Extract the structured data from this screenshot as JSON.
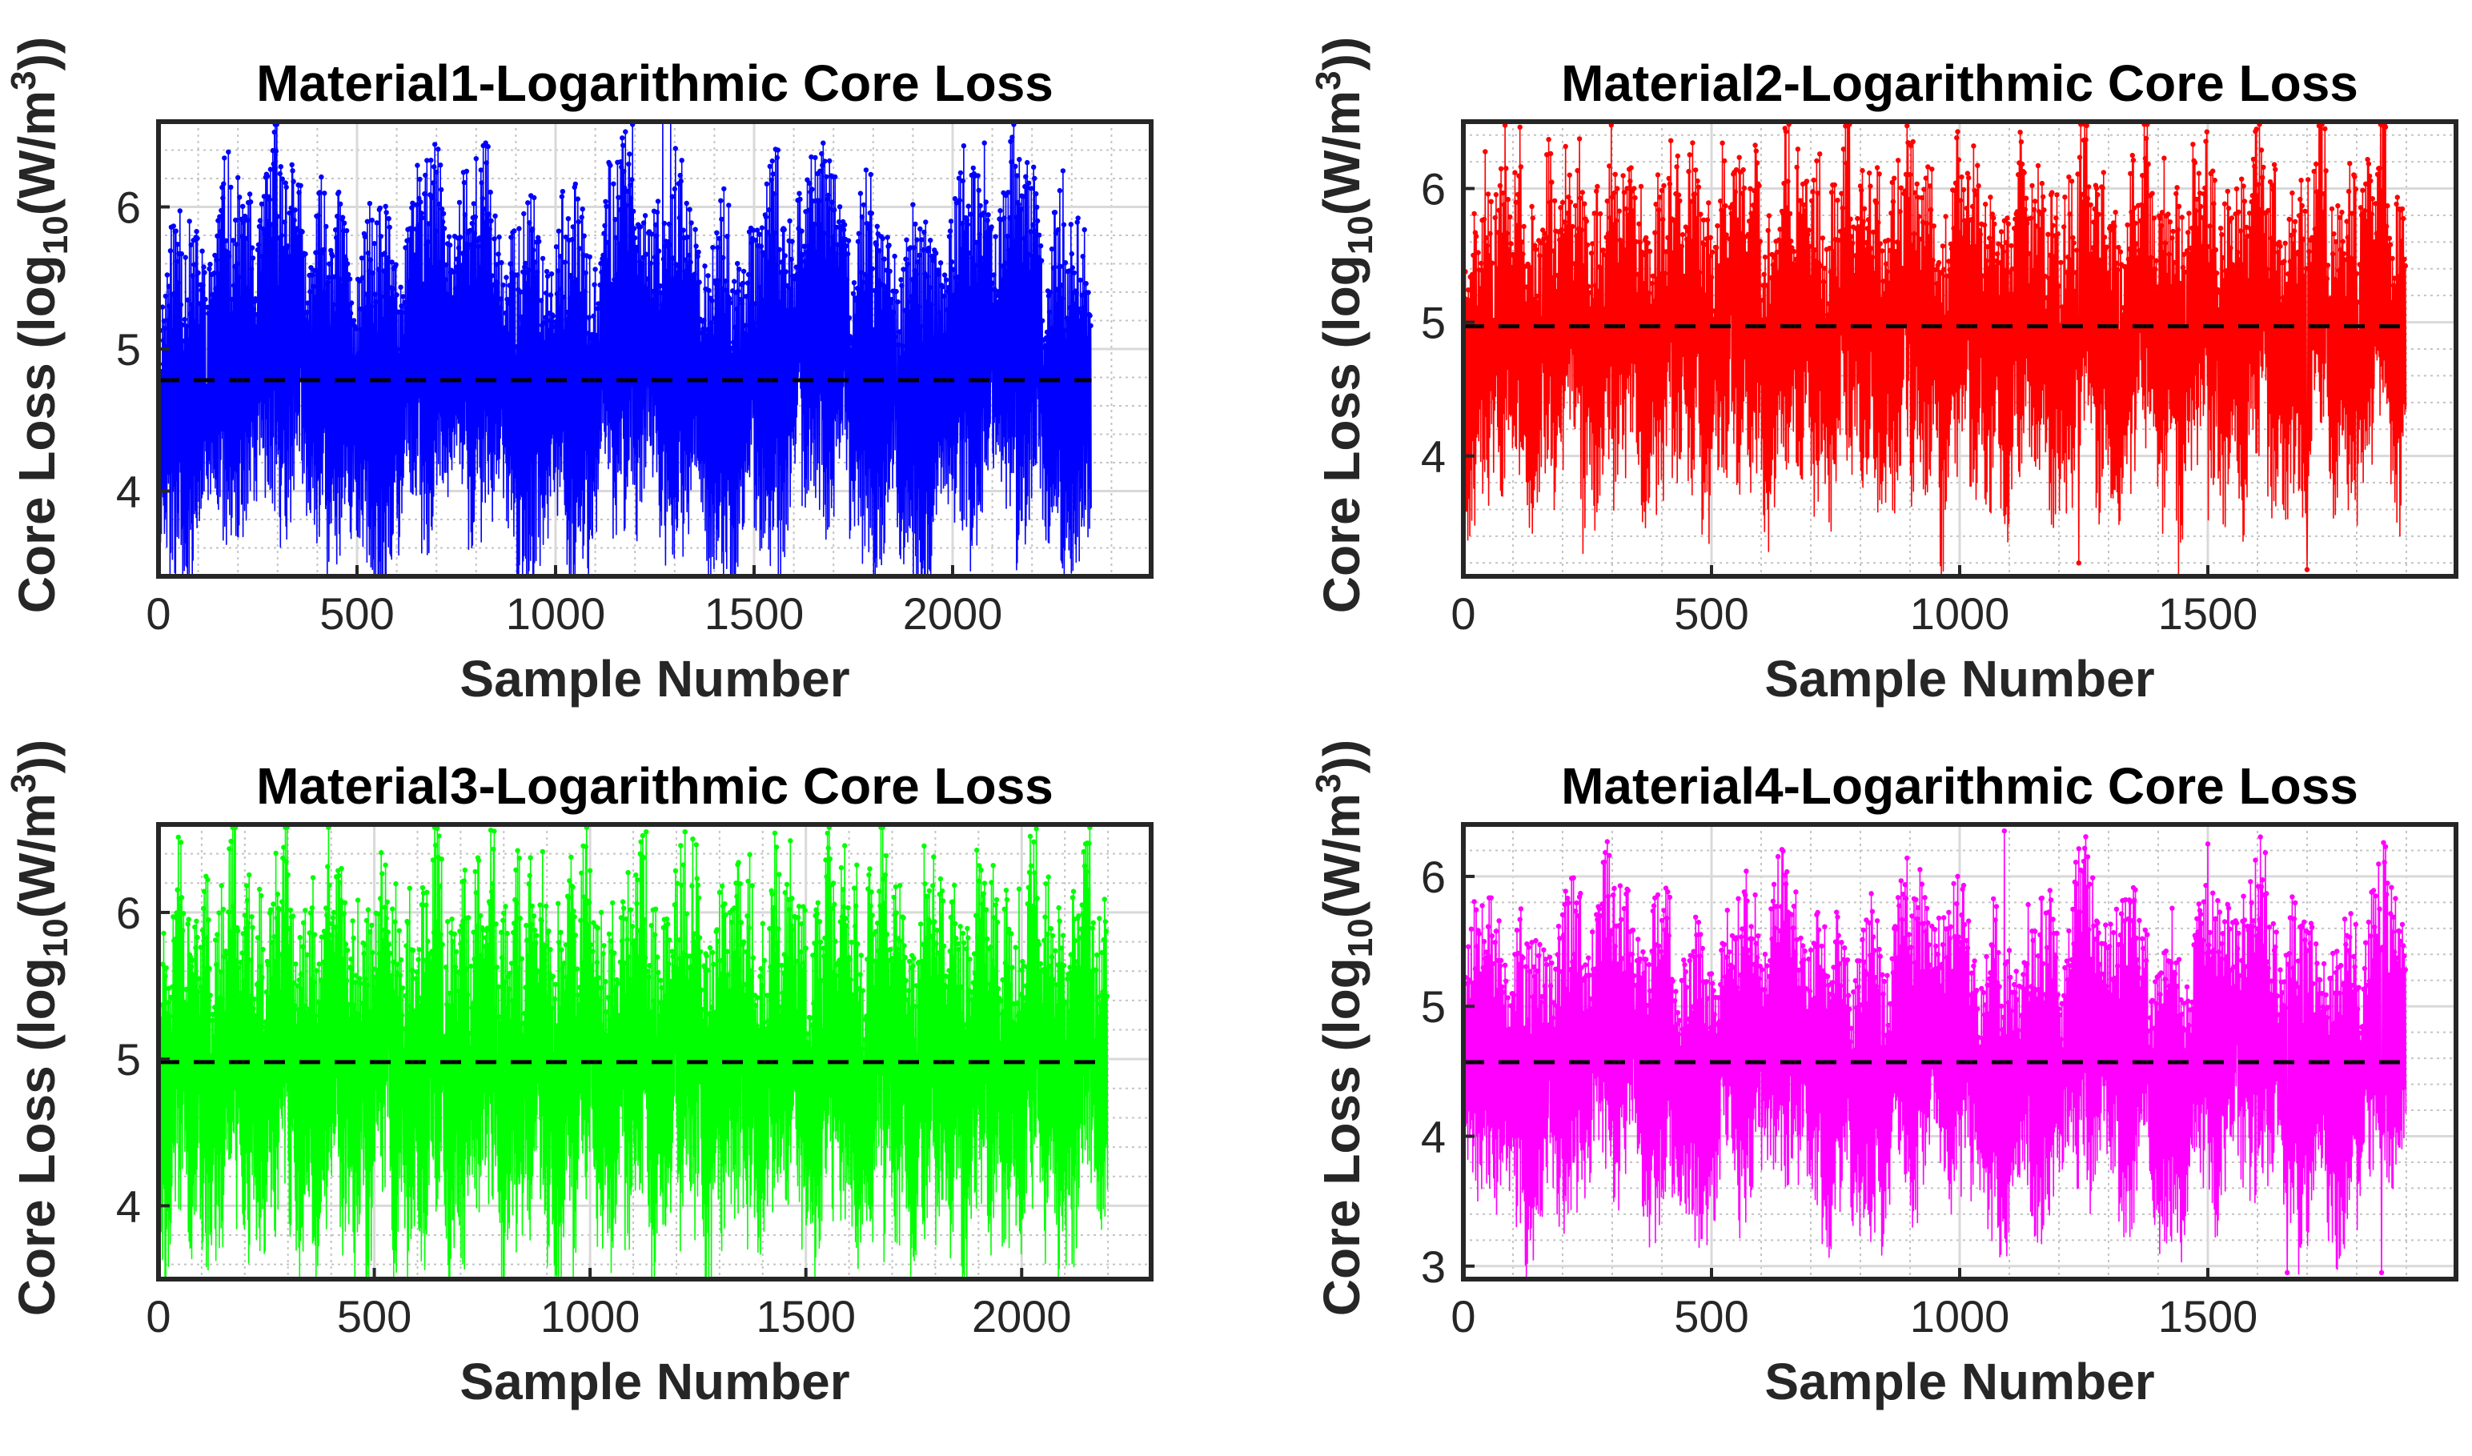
{
  "figure": {
    "background": "#ffffff"
  },
  "chart_data": [
    {
      "type": "line",
      "title": "Material1-Logarithmic Core Loss",
      "xlabel": "Sample Number",
      "ylabel_parts": [
        "Core Loss (log",
        "10",
        "(W/m",
        "3",
        "))"
      ],
      "xlim": [
        0,
        2500
      ],
      "ylim": [
        3.4,
        6.6
      ],
      "xticks": [
        0,
        500,
        1000,
        1500,
        2000
      ],
      "yticks": [
        4,
        5,
        6
      ],
      "minor_xstep": 100,
      "minor_ystep": 0.2,
      "grid": true,
      "n_samples": 2350,
      "color": "#0000ff",
      "mean": 4.78,
      "mean_line_style": "black dashed",
      "profile": {
        "min": 3.4,
        "max": 6.3,
        "range": [
          3.4,
          6.6
        ],
        "blocks": 19,
        "seed": 11,
        "spikes": [
          [
            1270,
            6.6
          ],
          [
            1290,
            6.6
          ],
          [
            2080,
            6.45
          ],
          [
            1560,
            6.4
          ]
        ]
      }
    },
    {
      "type": "line",
      "title": "Material2-Logarithmic Core Loss",
      "xlabel": "Sample Number",
      "ylabel_parts": [
        "Core Loss (log",
        "10",
        "(W/m",
        "3",
        "))"
      ],
      "xlim": [
        0,
        2000
      ],
      "ylim": [
        3.1,
        6.5
      ],
      "xticks": [
        0,
        500,
        1000,
        1500
      ],
      "yticks": [
        4,
        5,
        6
      ],
      "minor_xstep": 100,
      "minor_ystep": 0.2,
      "grid": true,
      "n_samples": 1900,
      "color": "#ff0000",
      "mean": 4.97,
      "mean_line_style": "black dashed",
      "profile": {
        "min": 3.5,
        "max": 6.35,
        "range": [
          3.1,
          6.5
        ],
        "blocks": 60,
        "seed": 23,
        "spikes": [
          [
            1240,
            3.2
          ],
          [
            1700,
            3.15
          ]
        ]
      }
    },
    {
      "type": "line",
      "title": "Material3-Logarithmic Core Loss",
      "xlabel": "Sample Number",
      "ylabel_parts": [
        "Core Loss (log",
        "10",
        "(W/m",
        "3",
        "))"
      ],
      "xlim": [
        0,
        2300
      ],
      "ylim": [
        3.5,
        6.6
      ],
      "xticks": [
        0,
        500,
        1000,
        1500,
        2000
      ],
      "yticks": [
        4,
        5,
        6
      ],
      "minor_xstep": 100,
      "minor_ystep": 0.2,
      "grid": true,
      "n_samples": 2200,
      "color": "#00ff00",
      "mean": 4.98,
      "mean_line_style": "black dashed",
      "profile": {
        "min": 3.55,
        "max": 6.4,
        "range": [
          3.5,
          6.6
        ],
        "blocks": 70,
        "seed": 37,
        "spikes": [
          [
            1130,
            6.55
          ],
          [
            1220,
            6.55
          ]
        ]
      }
    },
    {
      "type": "line",
      "title": "Material4-Logarithmic Core Loss",
      "xlabel": "Sample Number",
      "ylabel_parts": [
        "Core Loss (log",
        "10",
        "(W/m",
        "3",
        "))"
      ],
      "xlim": [
        0,
        2000
      ],
      "ylim": [
        2.9,
        6.4
      ],
      "xticks": [
        0,
        500,
        1000,
        1500
      ],
      "yticks": [
        3,
        4,
        5,
        6
      ],
      "minor_xstep": 100,
      "minor_ystep": 0.2,
      "grid": true,
      "n_samples": 1900,
      "color": "#ff00ff",
      "mean": 4.57,
      "mean_line_style": "black dashed",
      "profile": {
        "min": 3.2,
        "max": 6.0,
        "range": [
          2.9,
          6.4
        ],
        "blocks": 22,
        "seed": 53,
        "spikes": [
          [
            1090,
            6.35
          ],
          [
            1500,
            6.25
          ],
          [
            1660,
            2.95
          ],
          [
            1850,
            2.95
          ]
        ]
      }
    }
  ]
}
